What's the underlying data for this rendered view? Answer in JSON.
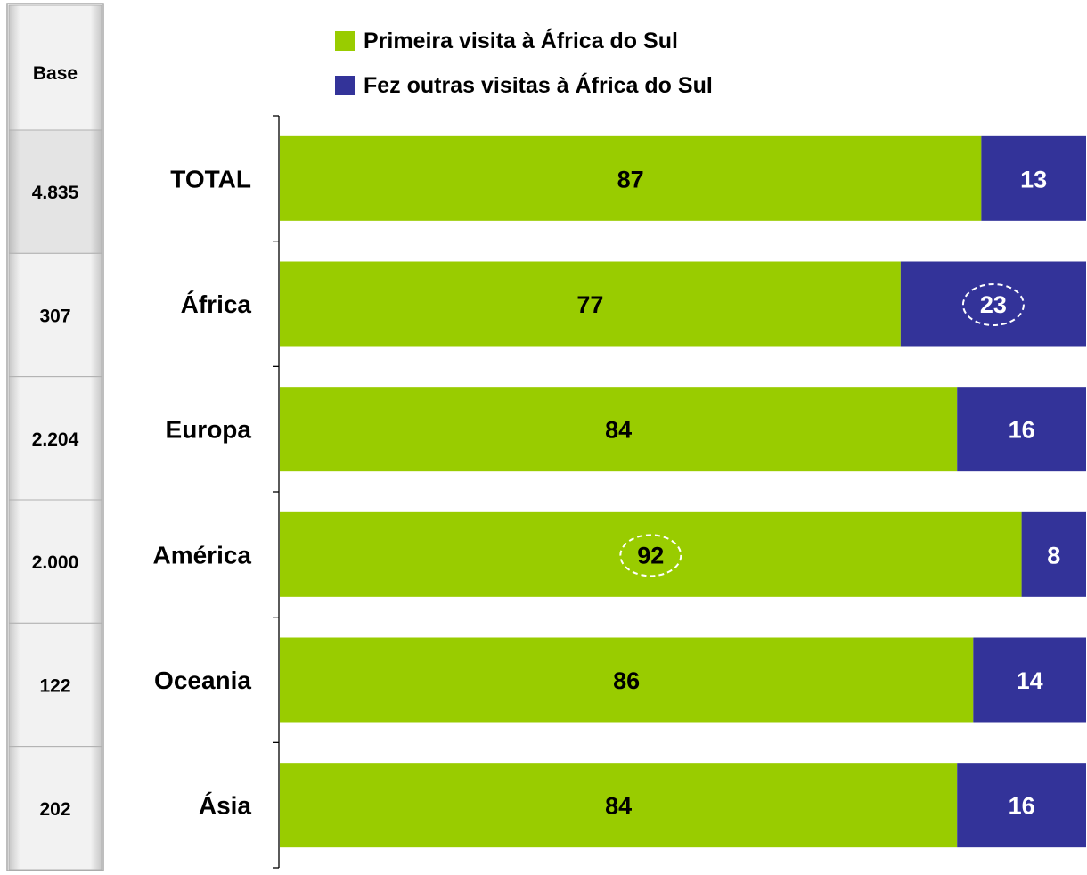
{
  "chart_data": {
    "type": "bar",
    "orientation": "horizontal",
    "stacked": true,
    "percent_stacked": true,
    "categories": [
      "TOTAL",
      "África",
      "Europa",
      "América",
      "Oceania",
      "Ásia"
    ],
    "series": [
      {
        "name": "Primeira visita à África do Sul",
        "color": "#99cc00",
        "values": [
          87,
          77,
          84,
          92,
          86,
          84
        ]
      },
      {
        "name": "Fez outras visitas à África do Sul",
        "color": "#333399",
        "values": [
          13,
          23,
          16,
          8,
          14,
          16
        ]
      }
    ],
    "legend_position": "top",
    "grid": false,
    "xlim": [
      0,
      100
    ],
    "base_table": {
      "header": "Base",
      "values": [
        "4.835",
        "307",
        "2.204",
        "2.000",
        "122",
        "202"
      ]
    },
    "highlighted": [
      {
        "category": "África",
        "series": 1
      },
      {
        "category": "América",
        "series": 0
      }
    ]
  }
}
